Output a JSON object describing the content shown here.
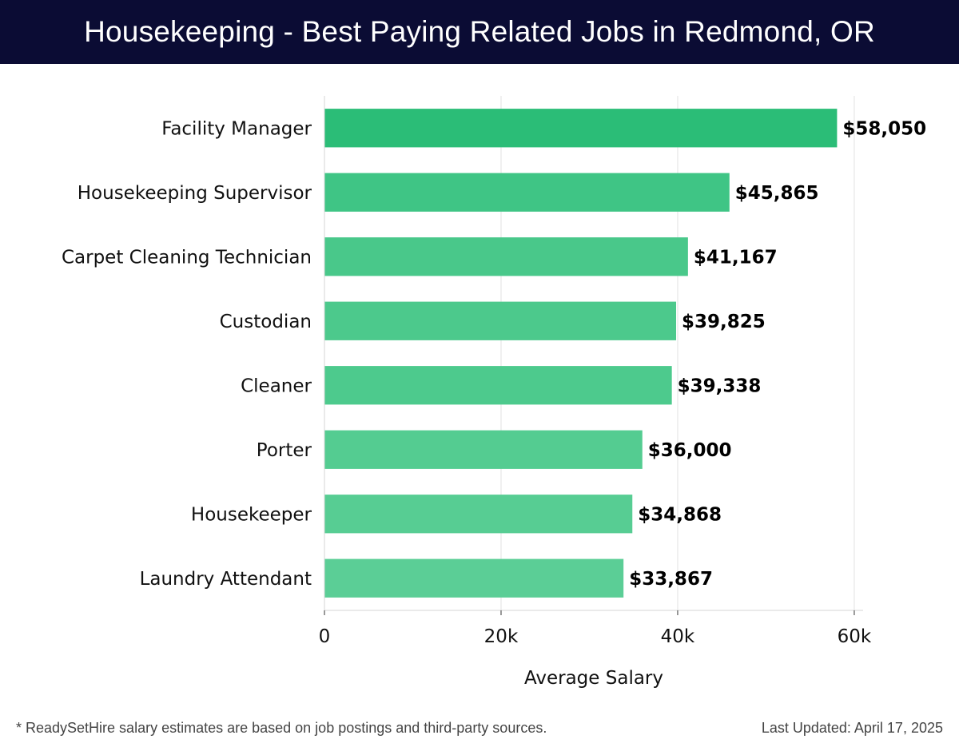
{
  "header": {
    "title": "Housekeeping - Best Paying Related Jobs in Redmond, OR"
  },
  "footer": {
    "note": "* ReadySetHire salary estimates are based on job postings and third-party sources.",
    "last_updated": "Last Updated: April 17, 2025"
  },
  "chart_data": {
    "type": "bar",
    "orientation": "horizontal",
    "title": "Housekeeping - Best Paying Related Jobs in Redmond, OR",
    "xlabel": "Average Salary",
    "ylabel": "",
    "categories": [
      "Facility Manager",
      "Housekeeping Supervisor",
      "Carpet Cleaning Technician",
      "Custodian",
      "Cleaner",
      "Porter",
      "Housekeeper",
      "Laundry Attendant"
    ],
    "values": [
      58050,
      45865,
      41167,
      39825,
      39338,
      36000,
      34868,
      33867
    ],
    "value_labels": [
      "$58,050",
      "$45,865",
      "$41,167",
      "$39,825",
      "$39,338",
      "$36,000",
      "$34,868",
      "$33,867"
    ],
    "bar_colors": [
      "#2bbd77",
      "#3fc585",
      "#49c88a",
      "#4cc98c",
      "#4dca8d",
      "#54cc91",
      "#57cd93",
      "#5bce96"
    ],
    "xlim": [
      0,
      61000
    ],
    "xticks": [
      0,
      20000,
      40000,
      60000
    ],
    "xtick_labels": [
      "0",
      "20k",
      "40k",
      "60k"
    ],
    "grid": "vertical",
    "legend": "none"
  }
}
